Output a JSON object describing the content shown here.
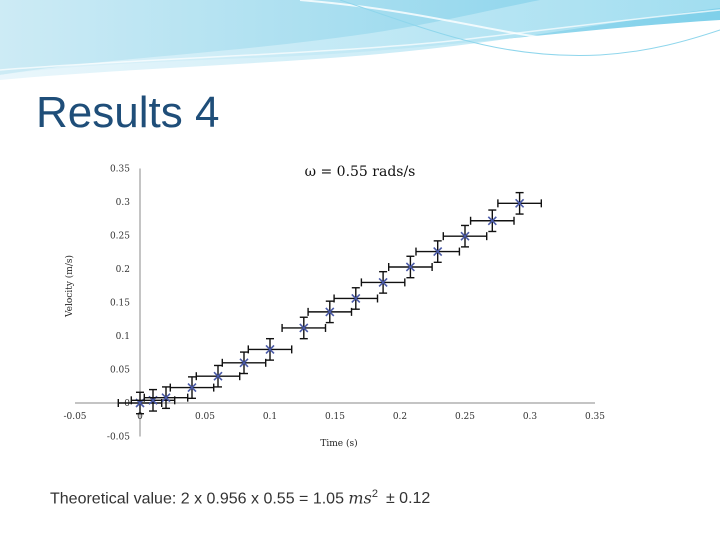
{
  "slide": {
    "title": "Results 4",
    "formula_prefix": "Theoretical value: 2 x 0.956 x 0.55  = 1.05 ",
    "formula_unit": "ms",
    "formula_exponent": "2",
    "formula_uncertainty": "± 0.12"
  },
  "colors": {
    "title": "#1f4e79",
    "banner_light": "#bfe6f3",
    "banner_mid": "#5cc0e0",
    "marker": "#4a5aa8",
    "errorbar": "#111111"
  },
  "chart_data": {
    "type": "scatter",
    "title": "ω = 0.55 rads/s",
    "xlabel": "Time (s)",
    "ylabel": "Velocity (m/s)",
    "xlim": [
      -0.05,
      0.35
    ],
    "ylim": [
      -0.05,
      0.35
    ],
    "x_ticks": [
      "-0.05",
      "0",
      "0.05",
      "0.1",
      "0.15",
      "0.2",
      "0.25",
      "0.3",
      "0.35"
    ],
    "x_tick_values": [
      -0.05,
      0,
      0.05,
      0.1,
      0.15,
      0.2,
      0.25,
      0.3,
      0.35
    ],
    "y_ticks": [
      "-0.05",
      "0",
      "0.05",
      "0.1",
      "0.15",
      "0.2",
      "0.25",
      "0.3",
      "0.35"
    ],
    "y_tick_values": [
      -0.05,
      0,
      0.05,
      0.1,
      0.15,
      0.2,
      0.25,
      0.3,
      0.35
    ],
    "grid": false,
    "legend": "none",
    "x_error": 0.0167,
    "y_error": 0.016,
    "points": [
      {
        "x": 0.0,
        "y": 0.0
      },
      {
        "x": 0.01,
        "y": 0.004
      },
      {
        "x": 0.02,
        "y": 0.008
      },
      {
        "x": 0.04,
        "y": 0.023
      },
      {
        "x": 0.06,
        "y": 0.04
      },
      {
        "x": 0.08,
        "y": 0.06
      },
      {
        "x": 0.1,
        "y": 0.08
      },
      {
        "x": 0.126,
        "y": 0.112
      },
      {
        "x": 0.146,
        "y": 0.136
      },
      {
        "x": 0.166,
        "y": 0.156
      },
      {
        "x": 0.187,
        "y": 0.18
      },
      {
        "x": 0.208,
        "y": 0.203
      },
      {
        "x": 0.229,
        "y": 0.226
      },
      {
        "x": 0.25,
        "y": 0.249
      },
      {
        "x": 0.271,
        "y": 0.272
      },
      {
        "x": 0.292,
        "y": 0.298
      }
    ]
  }
}
